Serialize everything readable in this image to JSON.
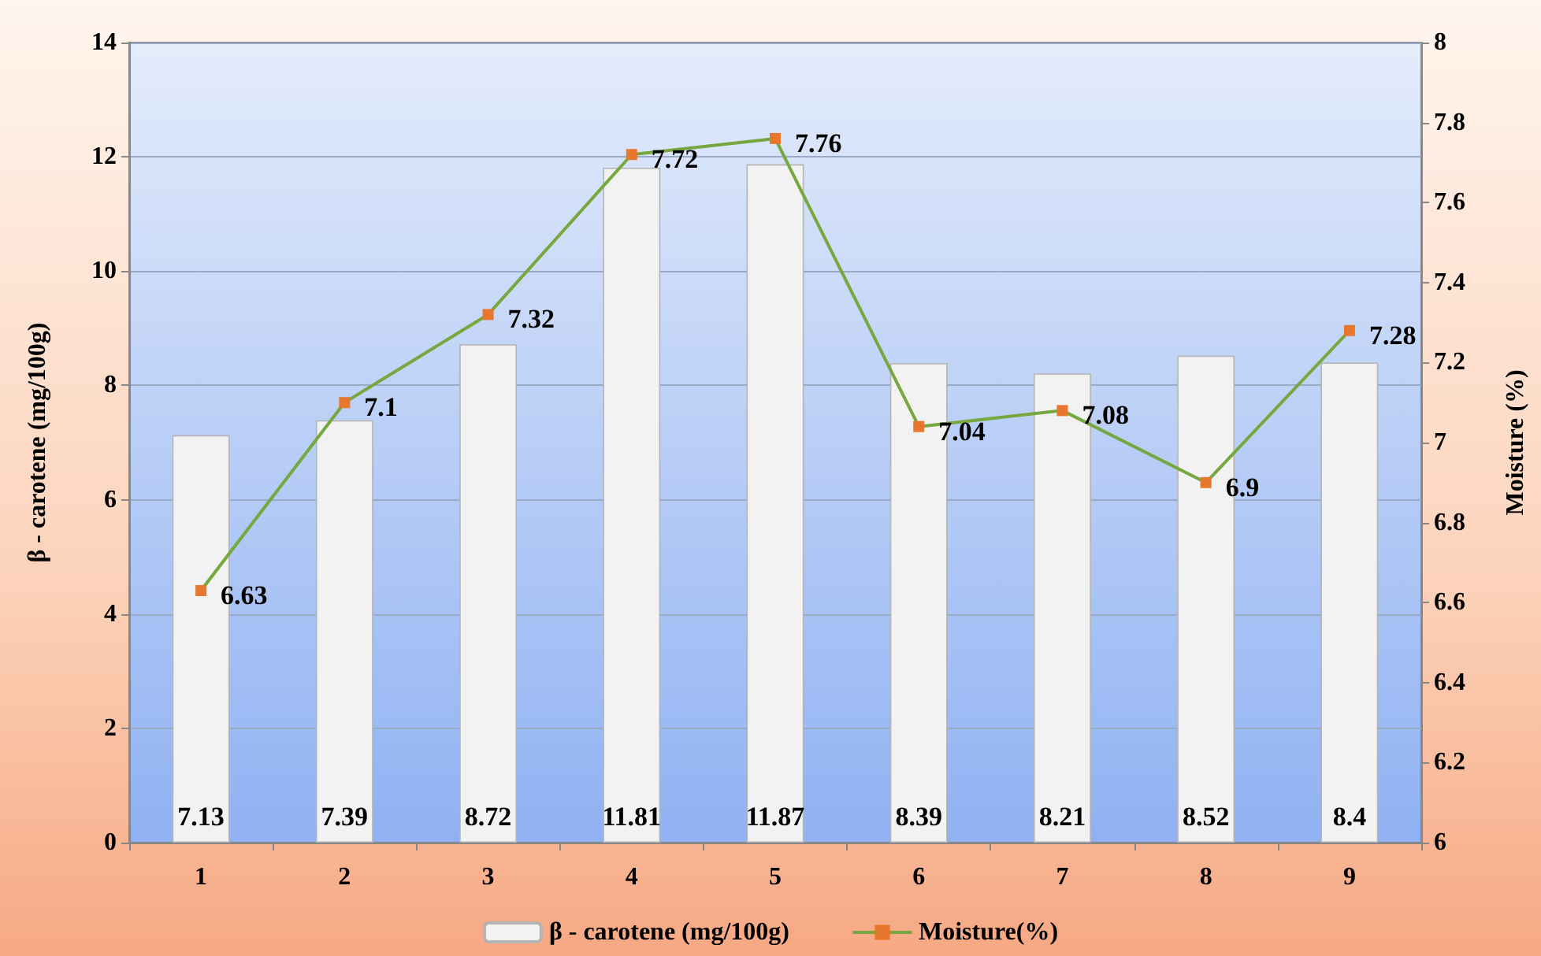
{
  "chart_data": {
    "type": "bar",
    "categories": [
      "1",
      "2",
      "3",
      "4",
      "5",
      "6",
      "7",
      "8",
      "9"
    ],
    "ylabel": "β - carotene (mg/100g)",
    "y2label": "Moisture (%)",
    "series": [
      {
        "name": "β - carotene (mg/100g)",
        "color": "#f2f2f2",
        "values": [
          7.13,
          7.39,
          8.72,
          11.81,
          11.87,
          8.39,
          8.21,
          8.52,
          8.4
        ]
      },
      {
        "name": "Moisture(%)",
        "type": "line",
        "axis": "y2",
        "color": "#77a83f",
        "colors": [
          "#e8772e",
          "#e8772e",
          "#e8772e",
          "#e8772e",
          "#e8772e",
          "#e8772e",
          "#e8772e",
          "#e8772e",
          "#e8772e"
        ],
        "marker": "square",
        "line_style": "solid",
        "values": [
          6.63,
          7.1,
          7.32,
          7.72,
          7.76,
          7.04,
          7.08,
          6.9,
          7.28
        ]
      }
    ],
    "ylim": [
      0,
      14
    ],
    "yticks": [
      0,
      2,
      4,
      6,
      8,
      10,
      12,
      14
    ],
    "y2lim": [
      6,
      8
    ],
    "y2ticks": [
      6,
      6.2,
      6.4,
      6.6,
      6.8,
      7,
      7.2,
      7.4,
      7.6,
      7.8,
      8
    ],
    "grid": "y",
    "legend": "bottom",
    "data_labels": true
  }
}
